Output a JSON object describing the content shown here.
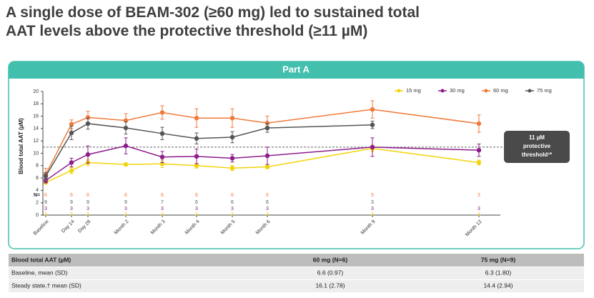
{
  "title_lines": [
    "A single dose of BEAM-302 (≥60 mg) led to sustained total",
    "AAT levels above the protective threshold (≥11 µM)"
  ],
  "chart_data": {
    "type": "line",
    "panel_title": "Part A",
    "y_label": "Blood total AAT (µM)",
    "categories": [
      "Baseline",
      "Day 14",
      "Day 28",
      "Month 2",
      "Month 3",
      "Month 4",
      "Month 5",
      "Month 6",
      "Month 9",
      "Month 12"
    ],
    "ylim": [
      0,
      20
    ],
    "yticks": [
      0,
      2,
      4,
      6,
      8,
      10,
      12,
      14,
      16,
      18,
      20
    ],
    "n_label": "N=",
    "threshold": 11,
    "annotation": [
      "11 µM",
      "protective",
      "threshold¹*"
    ],
    "series": [
      {
        "name": "15 mg",
        "color": "#f2d40c",
        "values": [
          5.3,
          7.2,
          8.5,
          8.2,
          8.3,
          8.0,
          7.6,
          7.8,
          10.8,
          8.5
        ],
        "errors": [
          0.3,
          0.5,
          0.5,
          0.2,
          0.6,
          0.4,
          0.4,
          0.3,
          0.5,
          0.4
        ],
        "n": [
          3,
          3,
          3,
          3,
          3,
          3,
          3,
          3,
          3,
          3
        ]
      },
      {
        "name": "30 mg",
        "color": "#8c1c8a",
        "values": [
          5.6,
          8.5,
          9.8,
          11.2,
          9.4,
          9.5,
          9.2,
          9.6,
          11.0,
          10.5
        ],
        "errors": [
          0.4,
          0.7,
          1.4,
          1.3,
          0.9,
          1.2,
          0.6,
          1.4,
          1.5,
          1.0
        ],
        "n": [
          3,
          3,
          3,
          3,
          3,
          3,
          3,
          3,
          3,
          3
        ]
      },
      {
        "name": "60 mg",
        "color": "#f07a3a",
        "values": [
          6.6,
          14.7,
          15.8,
          15.3,
          16.6,
          15.7,
          15.7,
          14.9,
          17.1,
          14.8
        ],
        "errors": [
          0.97,
          0.7,
          1.0,
          1.1,
          1.1,
          1.5,
          1.5,
          1.1,
          1.4,
          1.4
        ],
        "n": [
          6,
          6,
          6,
          6,
          6,
          6,
          6,
          5,
          5,
          3
        ]
      },
      {
        "name": "75 mg",
        "color": "#555555",
        "values": [
          6.3,
          13.3,
          14.8,
          14.1,
          13.2,
          12.4,
          12.6,
          14.1,
          14.6,
          null
        ],
        "errors": [
          0.6,
          1.1,
          0.9,
          1.0,
          1.0,
          0.9,
          0.9,
          0.7,
          0.6,
          null
        ],
        "n": [
          9,
          9,
          9,
          9,
          7,
          6,
          6,
          6,
          3,
          null
        ]
      }
    ]
  },
  "table": {
    "header": [
      "Blood total AAT (µM)",
      "60 mg (N=6)",
      "75 mg (N=9)"
    ],
    "rows": [
      [
        "Baseline, mean (SD)",
        "6.6 (0.97)",
        "6.3 (1.80)"
      ],
      [
        "Steady state,† mean (SD)",
        "16.1 (2.78)",
        "14.4 (2.94)"
      ]
    ]
  }
}
